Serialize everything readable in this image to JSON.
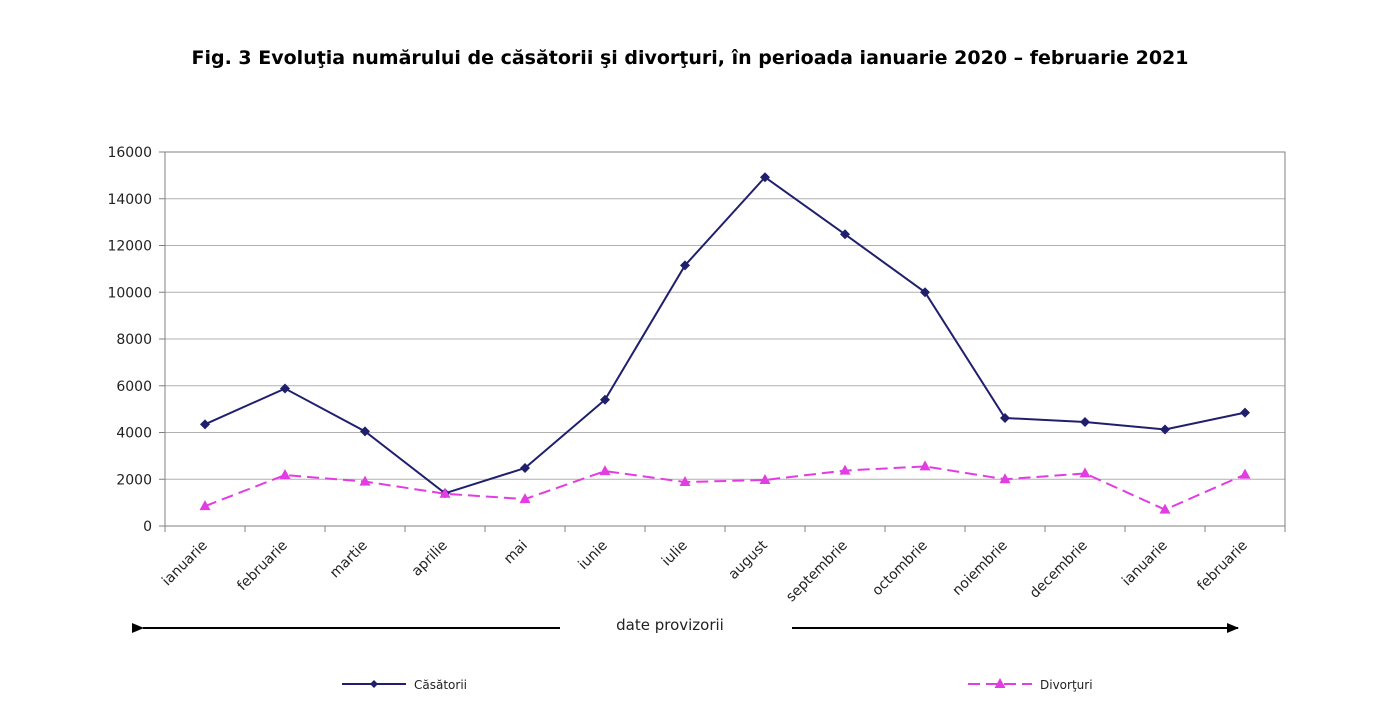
{
  "chart_data": {
    "type": "line",
    "title": "Fig. 3 Evoluţia numărului de căsătorii şi divorţuri, în perioada ianuarie 2020 – februarie 2021",
    "categories": [
      "ianuarie",
      "februarie",
      "martie",
      "aprilie",
      "mai",
      "iunie",
      "iulie",
      "august",
      "septembrie",
      "octombrie",
      "noiembrie",
      "decembrie",
      "ianuarie",
      "februarie"
    ],
    "series": [
      {
        "name": "Căsătorii",
        "color": "#1f1f6e",
        "line_style": "solid",
        "marker": "diamond",
        "values": [
          4350,
          5880,
          4050,
          1400,
          2480,
          5400,
          11150,
          14920,
          12480,
          10000,
          4620,
          4450,
          4130,
          4850
        ]
      },
      {
        "name": "Divorţuri",
        "color": "#e23de2",
        "line_style": "dashed",
        "marker": "triangle",
        "values": [
          850,
          2180,
          1900,
          1380,
          1150,
          2350,
          1880,
          1970,
          2370,
          2550,
          2000,
          2250,
          700,
          2200
        ]
      }
    ],
    "ylim": [
      0,
      16000
    ],
    "yticks": [
      0,
      2000,
      4000,
      6000,
      8000,
      10000,
      12000,
      14000,
      16000
    ],
    "xlabel": "",
    "ylabel": "",
    "grid": true,
    "legend_position": "bottom",
    "annotation": "date provizorii",
    "annotation_arrows": "left and right"
  }
}
